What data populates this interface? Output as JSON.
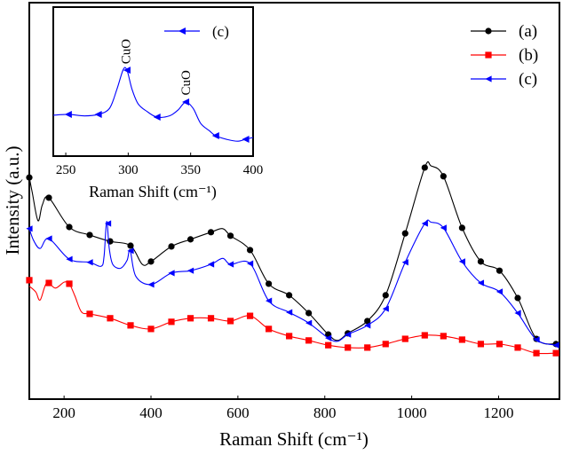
{
  "chart_data": [
    {
      "type": "line",
      "title": "",
      "xlabel": "Raman Shift (cm⁻¹)",
      "ylabel": "Intensity (a.u.)",
      "xlim": [
        120,
        1340
      ],
      "ylim": [
        0,
        100
      ],
      "xticks": [
        200,
        400,
        600,
        800,
        1000,
        1200
      ],
      "xtick_labels": [
        "200",
        "400",
        "600",
        "800",
        "1000",
        "1200"
      ],
      "grid": false,
      "legend_position": "top-right",
      "series": [
        {
          "name": "(a)",
          "color": "#000000",
          "marker": "circle",
          "markers": [
            [
              120,
              55.9
            ],
            [
              165,
              50.8
            ],
            [
              212,
              43.4
            ],
            [
              259,
              41.4
            ],
            [
              306,
              39.8
            ],
            [
              353,
              38.7
            ],
            [
              400,
              34.7
            ],
            [
              447,
              38.5
            ],
            [
              491,
              40.3
            ],
            [
              538,
              42.1
            ],
            [
              583,
              41.2
            ],
            [
              628,
              37.6
            ],
            [
              671,
              29.1
            ],
            [
              718,
              26.2
            ],
            [
              763,
              21.7
            ],
            [
              808,
              16.3
            ],
            [
              853,
              16.6
            ],
            [
              898,
              19.7
            ],
            [
              940,
              26.2
            ],
            [
              985,
              41.8
            ],
            [
              1030,
              58.4
            ],
            [
              1073,
              56.2
            ],
            [
              1116,
              43.2
            ],
            [
              1159,
              34.7
            ],
            [
              1202,
              32.4
            ],
            [
              1244,
              25.5
            ],
            [
              1287,
              15.2
            ],
            [
              1332,
              13.9
            ]
          ],
          "line": [
            [
              120,
              55.9
            ],
            [
              127,
              52
            ],
            [
              140,
              45
            ],
            [
              150,
              49
            ],
            [
              165,
              50.8
            ],
            [
              212,
              43.4
            ],
            [
              259,
              41.4
            ],
            [
              306,
              39.8
            ],
            [
              353,
              38.7
            ],
            [
              380,
              34
            ],
            [
              400,
              34.7
            ],
            [
              447,
              38.5
            ],
            [
              491,
              40.3
            ],
            [
              538,
              42.1
            ],
            [
              565,
              43
            ],
            [
              583,
              41.2
            ],
            [
              628,
              37.6
            ],
            [
              671,
              29.1
            ],
            [
              718,
              26.2
            ],
            [
              763,
              21.7
            ],
            [
              808,
              16.3
            ],
            [
              830,
              14.8
            ],
            [
              853,
              16.6
            ],
            [
              898,
              19.7
            ],
            [
              940,
              26.2
            ],
            [
              985,
              41.8
            ],
            [
              1030,
              58.4
            ],
            [
              1045,
              58.8
            ],
            [
              1073,
              56.2
            ],
            [
              1116,
              43.2
            ],
            [
              1159,
              34.7
            ],
            [
              1202,
              32.4
            ],
            [
              1244,
              25.5
            ],
            [
              1287,
              15.2
            ],
            [
              1332,
              13.9
            ]
          ]
        },
        {
          "name": "(b)",
          "color": "#ff0000",
          "marker": "square",
          "markers": [
            [
              120,
              30.0
            ],
            [
              165,
              29.3
            ],
            [
              212,
              29.1
            ],
            [
              259,
              21.5
            ],
            [
              306,
              20.4
            ],
            [
              353,
              18.6
            ],
            [
              400,
              17.7
            ],
            [
              447,
              19.5
            ],
            [
              491,
              20.4
            ],
            [
              538,
              20.4
            ],
            [
              583,
              19.7
            ],
            [
              628,
              21.0
            ],
            [
              671,
              17.7
            ],
            [
              718,
              15.9
            ],
            [
              763,
              14.8
            ],
            [
              808,
              13.6
            ],
            [
              853,
              13.0
            ],
            [
              898,
              13.0
            ],
            [
              940,
              13.9
            ],
            [
              985,
              15.2
            ],
            [
              1030,
              16.1
            ],
            [
              1073,
              15.9
            ],
            [
              1116,
              15.0
            ],
            [
              1159,
              13.9
            ],
            [
              1202,
              13.9
            ],
            [
              1244,
              13.0
            ],
            [
              1287,
              11.6
            ],
            [
              1332,
              11.6
            ]
          ],
          "line": [
            [
              120,
              28.5
            ],
            [
              135,
              27
            ],
            [
              145,
              25
            ],
            [
              160,
              29.3
            ],
            [
              180,
              28
            ],
            [
              200,
              29.5
            ],
            [
              212,
              29.1
            ],
            [
              225,
              26
            ],
            [
              240,
              22
            ],
            [
              259,
              21.5
            ],
            [
              306,
              20.4
            ],
            [
              353,
              18.6
            ],
            [
              400,
              17.7
            ],
            [
              447,
              19.5
            ],
            [
              491,
              20.4
            ],
            [
              538,
              20.4
            ],
            [
              583,
              19.7
            ],
            [
              628,
              21.0
            ],
            [
              671,
              17.7
            ],
            [
              718,
              15.9
            ],
            [
              763,
              14.8
            ],
            [
              808,
              13.6
            ],
            [
              853,
              13.0
            ],
            [
              898,
              13.0
            ],
            [
              940,
              13.9
            ],
            [
              985,
              15.2
            ],
            [
              1030,
              16.1
            ],
            [
              1073,
              15.9
            ],
            [
              1116,
              15.0
            ],
            [
              1159,
              13.9
            ],
            [
              1202,
              13.9
            ],
            [
              1244,
              13.0
            ],
            [
              1287,
              11.6
            ],
            [
              1332,
              11.6
            ]
          ]
        },
        {
          "name": "(c)",
          "color": "#0000ff",
          "marker": "triangle-left",
          "markers": [
            [
              120,
              43.0
            ],
            [
              165,
              40.5
            ],
            [
              212,
              35.3
            ],
            [
              259,
              34.5
            ],
            [
              301,
              44.3
            ],
            [
              353,
              37.4
            ],
            [
              400,
              28.9
            ],
            [
              447,
              31.8
            ],
            [
              491,
              32.4
            ],
            [
              538,
              34.0
            ],
            [
              583,
              34.0
            ],
            [
              628,
              34.2
            ],
            [
              671,
              24.8
            ],
            [
              718,
              21.9
            ],
            [
              763,
              19.2
            ],
            [
              808,
              15.4
            ],
            [
              853,
              16.3
            ],
            [
              898,
              18.6
            ],
            [
              940,
              22.8
            ],
            [
              985,
              34.5
            ],
            [
              1030,
              44.3
            ],
            [
              1073,
              43.2
            ],
            [
              1116,
              34.7
            ],
            [
              1159,
              29.3
            ],
            [
              1202,
              27.1
            ],
            [
              1244,
              21.7
            ],
            [
              1287,
              15.0
            ],
            [
              1332,
              13.6
            ]
          ],
          "line": [
            [
              120,
              43.0
            ],
            [
              130,
              40
            ],
            [
              145,
              38
            ],
            [
              165,
              40.5
            ],
            [
              212,
              35.3
            ],
            [
              259,
              34.5
            ],
            [
              285,
              33.5
            ],
            [
              292,
              36
            ],
            [
              298,
              44.8
            ],
            [
              304,
              38
            ],
            [
              312,
              34
            ],
            [
              330,
              33
            ],
            [
              345,
              35
            ],
            [
              352,
              37.6
            ],
            [
              365,
              31
            ],
            [
              400,
              28.9
            ],
            [
              447,
              31.8
            ],
            [
              491,
              32.4
            ],
            [
              538,
              34.0
            ],
            [
              565,
              35.5
            ],
            [
              583,
              34.0
            ],
            [
              628,
              34.2
            ],
            [
              671,
              24.8
            ],
            [
              718,
              21.9
            ],
            [
              763,
              19.2
            ],
            [
              808,
              15.4
            ],
            [
              830,
              14.6
            ],
            [
              853,
              16.3
            ],
            [
              898,
              18.6
            ],
            [
              940,
              22.8
            ],
            [
              985,
              34.5
            ],
            [
              1030,
              44.3
            ],
            [
              1045,
              44.6
            ],
            [
              1073,
              43.2
            ],
            [
              1116,
              34.7
            ],
            [
              1159,
              29.3
            ],
            [
              1202,
              27.1
            ],
            [
              1244,
              21.7
            ],
            [
              1287,
              15.0
            ],
            [
              1332,
              13.6
            ]
          ]
        }
      ]
    },
    {
      "type": "line",
      "title": "",
      "xlabel": "Raman Shift (cm⁻¹)",
      "ylabel": "",
      "xlim": [
        240,
        400
      ],
      "ylim": [
        0,
        100
      ],
      "xticks": [
        250,
        300,
        350,
        400
      ],
      "xtick_labels": [
        "250",
        "300",
        "350",
        "400"
      ],
      "grid": false,
      "legend_position": "top-right",
      "annotations": [
        {
          "text": "CuO",
          "x": 298,
          "y": 60
        },
        {
          "text": "CuO",
          "x": 346,
          "y": 39
        }
      ],
      "series": [
        {
          "name": "(c)",
          "color": "#0000ff",
          "marker": "triangle-left",
          "markers": [
            [
              252,
              28
            ],
            [
              276,
              28
            ],
            [
              299,
              57.7
            ],
            [
              323,
              26.2
            ],
            [
              346,
              36.3
            ],
            [
              370,
              13.7
            ],
            [
              394,
              11.3
            ]
          ],
          "line": [
            [
              240,
              27.4
            ],
            [
              252,
              28
            ],
            [
              265,
              27
            ],
            [
              276,
              28
            ],
            [
              285,
              32
            ],
            [
              291,
              45
            ],
            [
              296,
              58
            ],
            [
              299,
              57.7
            ],
            [
              303,
              45
            ],
            [
              308,
              35
            ],
            [
              315,
              30
            ],
            [
              323,
              26.2
            ],
            [
              333,
              27
            ],
            [
              340,
              31
            ],
            [
              346,
              36.3
            ],
            [
              352,
              32
            ],
            [
              358,
              22
            ],
            [
              365,
              17
            ],
            [
              370,
              13.7
            ],
            [
              380,
              11
            ],
            [
              388,
              10
            ],
            [
              394,
              11.3
            ],
            [
              400,
              12.5
            ]
          ]
        }
      ]
    }
  ]
}
